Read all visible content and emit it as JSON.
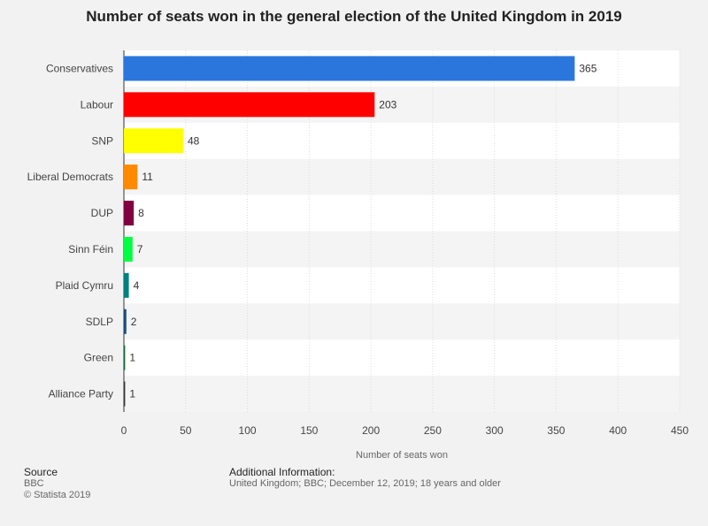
{
  "chart_data": {
    "type": "bar",
    "orientation": "horizontal",
    "title": "Number of seats won in the general election of the United Kingdom in 2019",
    "xlabel": "Number of seats won",
    "ylabel": "",
    "xlim": [
      0,
      450
    ],
    "ticks": [
      0,
      50,
      100,
      150,
      200,
      250,
      300,
      350,
      400,
      450
    ],
    "grid": true,
    "categories": [
      "Conservatives",
      "Labour",
      "SNP",
      "Liberal Democrats",
      "DUP",
      "Sinn Féin",
      "Plaid Cymru",
      "SDLP",
      "Green",
      "Alliance Party"
    ],
    "values": [
      365,
      203,
      48,
      11,
      8,
      7,
      4,
      2,
      1,
      1
    ],
    "colors": [
      "#2a76dd",
      "#ff0000",
      "#ffff00",
      "#ff8a00",
      "#800040",
      "#00ff40",
      "#008080",
      "#1a4d80",
      "#1a6b3a",
      "#333333"
    ]
  },
  "footer": {
    "source_heading": "Source",
    "source_line1": "BBC",
    "source_line2": "© Statista 2019",
    "info_heading": "Additional Information:",
    "info_text": "United Kingdom; BBC; December 12, 2019; 18 years and older"
  }
}
